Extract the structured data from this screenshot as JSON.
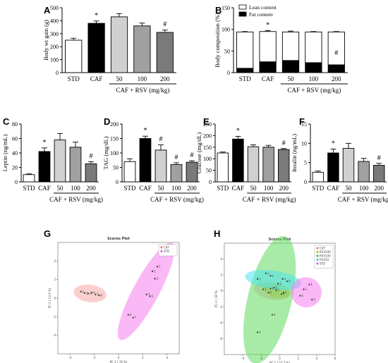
{
  "chart_data": [
    {
      "panel": "A",
      "type": "bar",
      "categories": [
        "STD",
        "CAF",
        "50",
        "100",
        "200"
      ],
      "values": [
        250,
        380,
        430,
        360,
        310
      ],
      "errors": [
        15,
        18,
        25,
        22,
        18
      ],
      "colors": [
        "#ffffff",
        "#000000",
        "#d0d0d0",
        "#a0a0a0",
        "#7a7a7a"
      ],
      "annotations": [
        "",
        "*",
        "",
        "",
        "#"
      ],
      "ylabel": "Body wt gain (g)",
      "ylim": [
        0,
        500
      ],
      "yticks": [
        "0",
        "100",
        "200",
        "300",
        "400",
        "500"
      ],
      "group_label": "CAF + RSV (mg/kg)"
    },
    {
      "panel": "B",
      "type": "bar",
      "stacked": true,
      "categories": [
        "STD",
        "CAF",
        "50",
        "100",
        "200"
      ],
      "series": [
        {
          "name": "Fat content",
          "values": [
            10,
            25,
            28,
            23,
            18
          ],
          "errors": [
            1,
            2,
            3,
            2,
            2
          ],
          "color": "#000000"
        },
        {
          "name": "Lean content",
          "values": [
            84,
            70,
            66,
            71,
            76
          ],
          "errors": [
            1,
            2,
            2,
            1,
            1
          ],
          "color": "#ffffff"
        }
      ],
      "annotations": [
        "",
        "*",
        "",
        "",
        "#"
      ],
      "ylabel": "Body composition (%)",
      "ylim": [
        0,
        150
      ],
      "yticks": [
        "0",
        "50",
        "100",
        "150"
      ],
      "legend": "top-right",
      "group_label": "CAF + RSV (mg/kg)"
    },
    {
      "panel": "C",
      "type": "bar",
      "categories": [
        "STD",
        "CAF",
        "50",
        "100",
        "200"
      ],
      "values": [
        10,
        42,
        58,
        48,
        25
      ],
      "errors": [
        1,
        5,
        9,
        7,
        3
      ],
      "colors": [
        "#ffffff",
        "#000000",
        "#d0d0d0",
        "#a0a0a0",
        "#7a7a7a"
      ],
      "annotations": [
        "",
        "*",
        "",
        "",
        "#"
      ],
      "ylabel": "Leptin (ng/mL)",
      "ylim": [
        0,
        80
      ],
      "yticks": [
        "0",
        "20",
        "40",
        "60",
        "80"
      ],
      "group_label": "CAF + RSV (mg/kg)"
    },
    {
      "panel": "D",
      "type": "bar",
      "categories": [
        "STD",
        "CAF",
        "50",
        "100",
        "200"
      ],
      "values": [
        70,
        150,
        110,
        60,
        68
      ],
      "errors": [
        10,
        8,
        18,
        6,
        5
      ],
      "colors": [
        "#ffffff",
        "#000000",
        "#d0d0d0",
        "#a0a0a0",
        "#7a7a7a"
      ],
      "annotations": [
        "",
        "*",
        "#",
        "#",
        "#"
      ],
      "ylabel": "TAG (mg/dL)",
      "ylim": [
        0,
        200
      ],
      "yticks": [
        "0",
        "50",
        "100",
        "150",
        "200"
      ],
      "group_label": "CAF + RSV (mg/kg)"
    },
    {
      "panel": "E",
      "type": "bar",
      "categories": [
        "STD",
        "CAF",
        "50",
        "100",
        "200"
      ],
      "values": [
        125,
        185,
        152,
        150,
        140
      ],
      "errors": [
        4,
        12,
        8,
        8,
        4
      ],
      "colors": [
        "#ffffff",
        "#000000",
        "#d0d0d0",
        "#a0a0a0",
        "#7a7a7a"
      ],
      "annotations": [
        "",
        "*",
        "",
        "",
        "#"
      ],
      "ylabel": "Glucose (mg/dL)",
      "ylim": [
        0,
        250
      ],
      "yticks": [
        "0",
        "50",
        "100",
        "150",
        "200",
        "250"
      ],
      "group_label": "CAF + RSV (mg/kg)"
    },
    {
      "panel": "F",
      "type": "bar",
      "categories": [
        "STD",
        "CAF",
        "50",
        "100",
        "200"
      ],
      "values": [
        2.5,
        7.5,
        8.7,
        5.3,
        4.3
      ],
      "errors": [
        0.3,
        1.0,
        1.3,
        0.8,
        0.5
      ],
      "colors": [
        "#ffffff",
        "#000000",
        "#d0d0d0",
        "#a0a0a0",
        "#7a7a7a"
      ],
      "annotations": [
        "",
        "*",
        "",
        "",
        "#"
      ],
      "ylabel": "Insulin (ng/mL)",
      "ylim": [
        0,
        15
      ],
      "yticks": [
        "0",
        "5",
        "10",
        "15"
      ],
      "group_label": "CAF + RSV (mg/kg)"
    },
    {
      "panel": "G",
      "type": "scatter",
      "title": "Scores Plot",
      "xlabel": "PC 1 ( 74 %)",
      "ylabel": "PC 2 ( 13.5 %)",
      "xlim": [
        -5,
        5
      ],
      "ylim": [
        -6,
        6
      ],
      "xticks": [
        "-4",
        "-2",
        "0",
        "2",
        "4"
      ],
      "yticks": [
        "-4",
        "-2",
        "0",
        "2",
        "4"
      ],
      "series": [
        {
          "name": "CAF",
          "color": "#f26d6d",
          "fill": "#f7a8a4",
          "points": [
            [
              -3.1,
              0.7
            ],
            [
              -2.8,
              0.55
            ],
            [
              -2.5,
              0.5
            ],
            [
              -2.2,
              0.6
            ],
            [
              -1.9,
              0.4
            ],
            [
              -1.6,
              0.3
            ]
          ]
        },
        {
          "name": "STD",
          "color": "#e04fd8",
          "fill": "#f57ef0",
          "points": [
            [
              3.2,
              3.4
            ],
            [
              2.8,
              2.9
            ],
            [
              3.0,
              2.1
            ],
            [
              2.3,
              0.4
            ],
            [
              2.6,
              0.2
            ],
            [
              0.8,
              -1.8
            ],
            [
              1.2,
              -2.1
            ]
          ]
        }
      ],
      "legend": "top-right"
    },
    {
      "panel": "H",
      "type": "scatter",
      "title": "Scores Plot",
      "xlabel": "PC 1 ( 57.2 %)",
      "ylabel": "PC 2 ( 18 %)",
      "xlim": [
        -6,
        6
      ],
      "ylim": [
        -8,
        6
      ],
      "xticks": [
        "-4",
        "-2",
        "0",
        "2",
        "4",
        "6"
      ],
      "yticks": [
        "-6",
        "-4",
        "-2",
        "0",
        "2",
        "4"
      ],
      "series": [
        {
          "name": "CAF",
          "color": "#f26d6d",
          "fill": "#f7a8a4",
          "points": [
            [
              -1.8,
              0.2
            ],
            [
              -1.2,
              -0.2
            ],
            [
              -0.6,
              0.4
            ],
            [
              0.2,
              -0.4
            ]
          ]
        },
        {
          "name": "RSV200",
          "color": "#c8b400",
          "fill": "#d8c842",
          "points": [
            [
              -1.0,
              0.3
            ],
            [
              -0.4,
              0.1
            ],
            [
              0.4,
              -0.2
            ]
          ]
        },
        {
          "name": "RSV100",
          "color": "#3bbf3b",
          "fill": "#5edb5e",
          "points": [
            [
              -1.5,
              2.2
            ],
            [
              -0.8,
              -3.0
            ],
            [
              -2.4,
              -5.2
            ],
            [
              0.3,
              1.5
            ]
          ]
        },
        {
          "name": "RSV50",
          "color": "#2fc7d8",
          "fill": "#4fe3ee",
          "points": [
            [
              -2.4,
              1.5
            ],
            [
              -1.0,
              1.9
            ],
            [
              -0.2,
              0.9
            ],
            [
              0.8,
              1.2
            ]
          ]
        },
        {
          "name": "STD",
          "color": "#e04fd8",
          "fill": "#f57ef0",
          "points": [
            [
              3.2,
              0.8
            ],
            [
              2.6,
              0.2
            ],
            [
              3.5,
              -1.1
            ],
            [
              2.2,
              -0.6
            ]
          ]
        }
      ],
      "legend": "top-right"
    }
  ]
}
